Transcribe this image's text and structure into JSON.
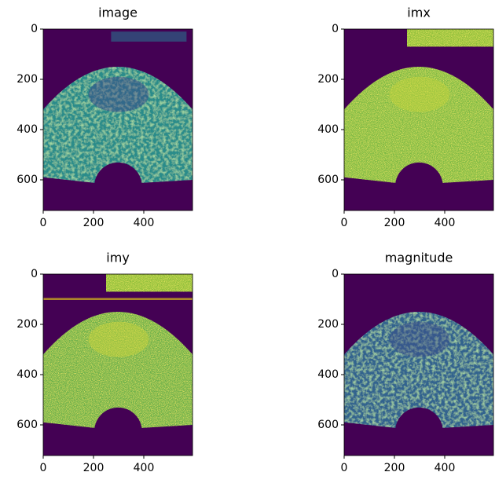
{
  "chart_data": [
    {
      "type": "image",
      "title": "image",
      "xlim": [
        0,
        594
      ],
      "ylim": [
        722,
        0
      ],
      "xticks": [
        0,
        200,
        400
      ],
      "yticks": [
        0,
        200,
        400,
        600
      ]
    },
    {
      "type": "image",
      "title": "imx",
      "xlim": [
        0,
        594
      ],
      "ylim": [
        722,
        0
      ],
      "xticks": [
        0,
        200,
        400
      ],
      "yticks": [
        0,
        200,
        400,
        600
      ]
    },
    {
      "type": "image",
      "title": "imy",
      "xlim": [
        0,
        594
      ],
      "ylim": [
        722,
        0
      ],
      "xticks": [
        0,
        200,
        400
      ],
      "yticks": [
        0,
        200,
        400,
        600
      ]
    },
    {
      "type": "image",
      "title": "magnitude",
      "xlim": [
        0,
        594
      ],
      "ylim": [
        722,
        0
      ],
      "xticks": [
        0,
        200,
        400
      ],
      "yticks": [
        0,
        200,
        400,
        600
      ]
    }
  ]
}
